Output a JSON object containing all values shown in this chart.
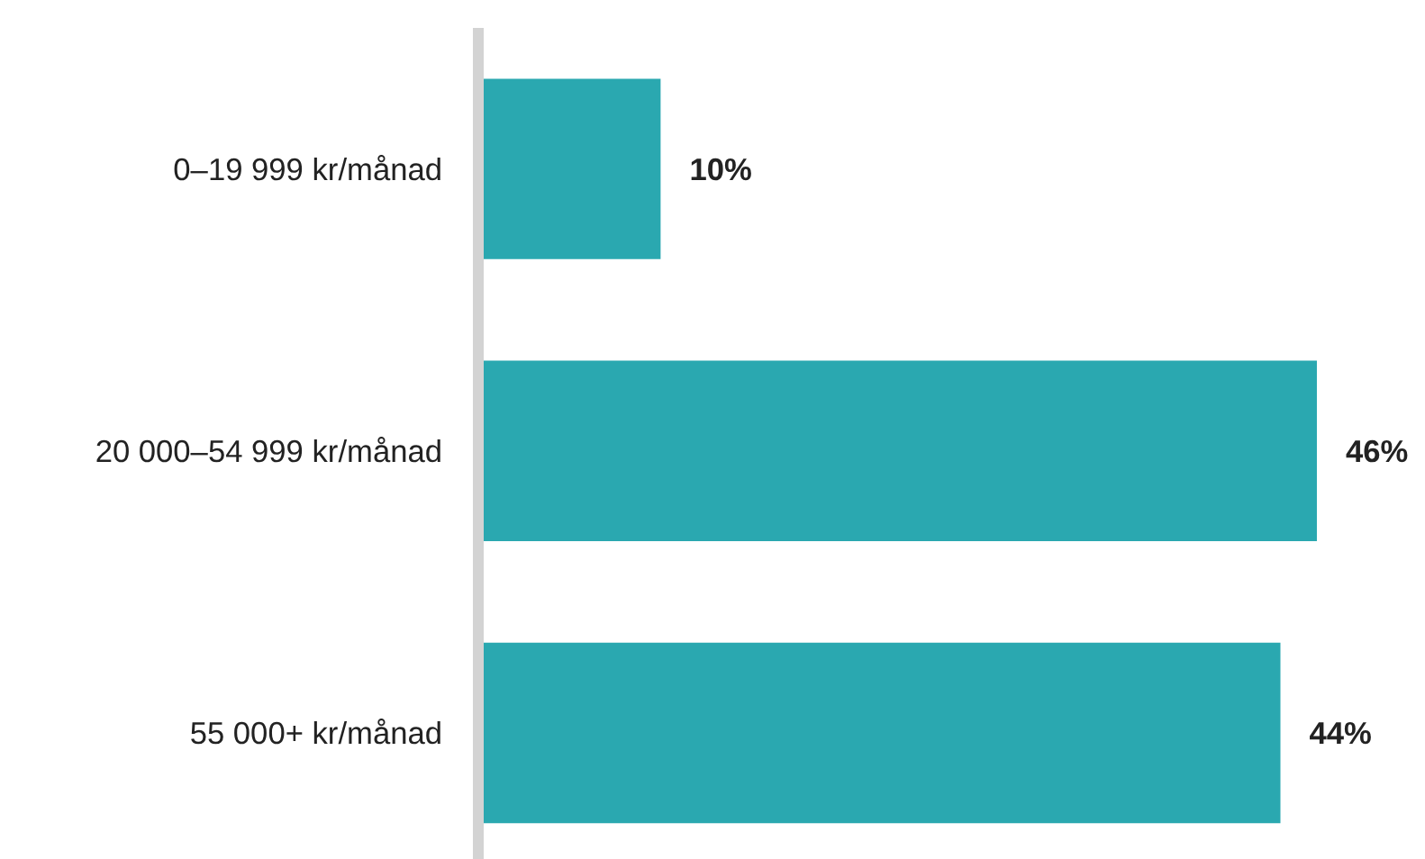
{
  "chart_data": {
    "type": "bar",
    "orientation": "horizontal",
    "categories": [
      "0–19 999 kr/månad",
      "20 000–54 999 kr/månad",
      "55 000+ kr/månad"
    ],
    "values": [
      10,
      46,
      44
    ],
    "value_labels": [
      "10%",
      "46%",
      "44%"
    ],
    "color": "#2aa8b0",
    "grid": false
  }
}
